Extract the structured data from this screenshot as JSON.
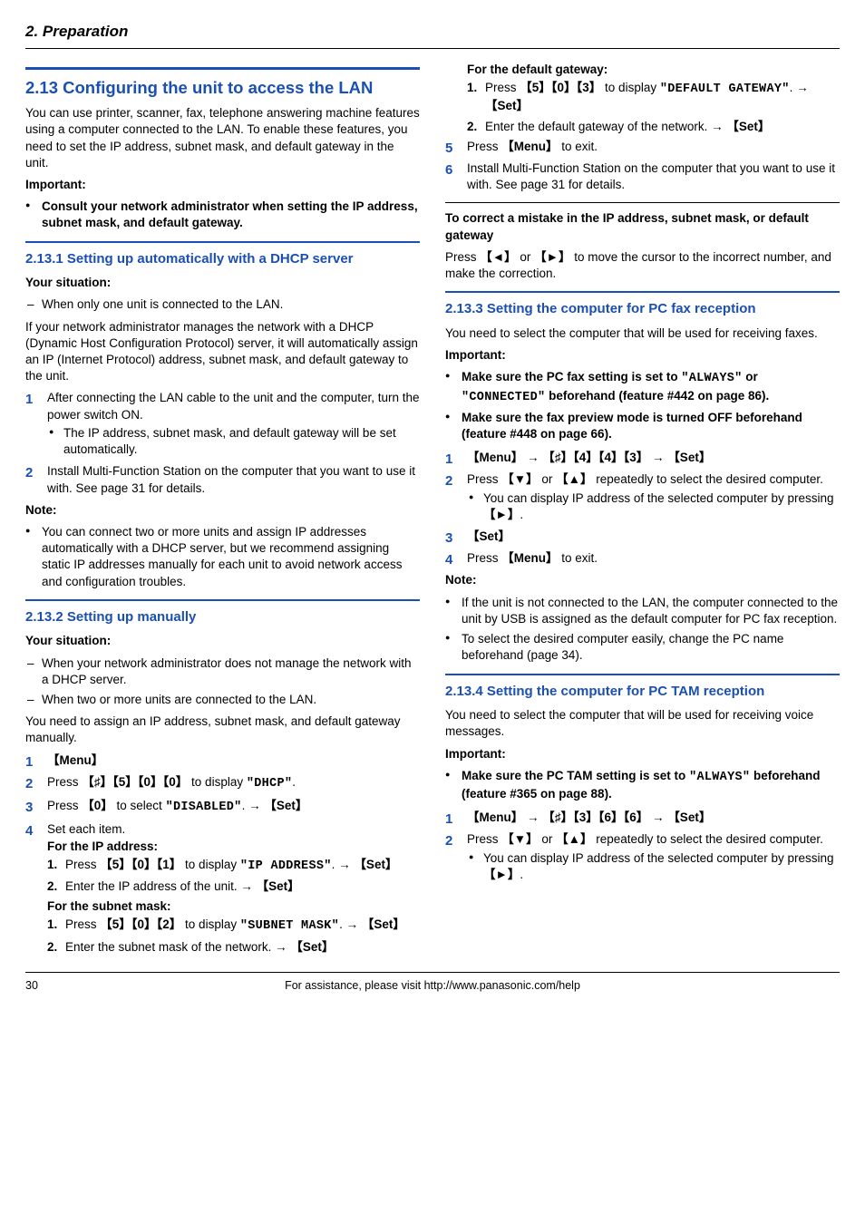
{
  "header": {
    "chapter": "2. Preparation"
  },
  "section213": {
    "title": "2.13 Configuring the unit to access the LAN",
    "intro": "You can use printer, scanner, fax, telephone answering machine features using a computer connected to the LAN. To enable these features, you need to set the IP address, subnet mask, and default gateway in the unit.",
    "important_label": "Important:",
    "important_item": "Consult your network administrator when setting the IP address, subnet mask, and default gateway."
  },
  "sub2131": {
    "title": "2.13.1 Setting up automatically with a DHCP server",
    "situation_label": "Your situation:",
    "situation_item": "When only one unit is connected to the LAN.",
    "para1": "If your network administrator manages the network with a DHCP (Dynamic Host Configuration Protocol) server, it will automatically assign an IP (Internet Protocol) address, subnet mask, and default gateway to the unit.",
    "step1": "After connecting the LAN cable to the unit and the computer, turn the power switch ON.",
    "step1_sub": "The IP address, subnet mask, and default gateway will be set automatically.",
    "step2": "Install Multi-Function Station on the computer that you want to use it with. See page 31 for details.",
    "note_label": "Note:",
    "note_item": "You can connect two or more units and assign IP addresses automatically with a DHCP server, but we recommend assigning static IP addresses manually for each unit to avoid network access and configuration troubles."
  },
  "sub2132": {
    "title": "2.13.2 Setting up manually",
    "situation_label": "Your situation:",
    "sit1": "When your network administrator does not manage the network with a DHCP server.",
    "sit2": "When two or more units are connected to the LAN.",
    "para1": "You need to assign an IP address, subnet mask, and default gateway manually.",
    "s1": "【Menu】",
    "s2_a": "Press ",
    "s2_b": "【♯】【5】【0】【0】",
    "s2_c": " to display ",
    "s2_d": "\"DHCP\"",
    "s2_e": ".",
    "s3_a": "Press ",
    "s3_b": "【0】",
    "s3_c": " to select ",
    "s3_d": "\"DISABLED\"",
    "s3_e": ". → ",
    "s3_f": "【Set】",
    "s4": "Set each item.",
    "ip_label": "For the IP address:",
    "ip1_a": "Press ",
    "ip1_b": "【5】【0】【1】",
    "ip1_c": " to display ",
    "ip1_d": "\"IP ADDRESS\"",
    "ip1_e": ". → ",
    "ip1_f": "【Set】",
    "ip2_a": "Enter the IP address of the unit. → ",
    "ip2_b": "【Set】",
    "sn_label": "For the subnet mask:",
    "sn1_a": "Press ",
    "sn1_b": "【5】【0】【2】",
    "sn1_c": " to display ",
    "sn1_d": "\"SUBNET MASK\"",
    "sn1_e": ". → ",
    "sn1_f": "【Set】",
    "sn2_a": "Enter the subnet mask of the network. → ",
    "sn2_b": "【Set】",
    "gw_label": "For the default gateway:",
    "gw1_a": "Press ",
    "gw1_b": "【5】【0】【3】",
    "gw1_c": " to display ",
    "gw1_d": "\"DEFAULT GATEWAY\"",
    "gw1_e": ". → ",
    "gw1_f": "【Set】",
    "gw2_a": "Enter the default gateway of the network. → ",
    "gw2_b": "【Set】",
    "s5_a": "Press ",
    "s5_b": "【Menu】",
    "s5_c": " to exit.",
    "s6": "Install Multi-Function Station on the computer that you want to use it with. See page 31 for details.",
    "corr_label": "To correct a mistake in the IP address, subnet mask, or default gateway",
    "corr_a": "Press ",
    "corr_b": "【◄】",
    "corr_c": " or ",
    "corr_d": "【►】",
    "corr_e": " to move the cursor to the incorrect number, and make the correction."
  },
  "sub2133": {
    "title": "2.13.3 Setting the computer for PC fax reception",
    "para1": "You need to select the computer that will be used for receiving faxes.",
    "imp_label": "Important:",
    "imp1_a": "Make sure the PC fax setting is set to ",
    "imp1_b": "\"ALWAYS\"",
    "imp1_c": " or ",
    "imp1_d": "\"CONNECTED\"",
    "imp1_e": " beforehand (feature #442 on page 86).",
    "imp2": "Make sure the fax preview mode is turned OFF beforehand (feature #448 on page 66).",
    "s1_a": "【Menu】",
    "s1_b": " → ",
    "s1_c": "【♯】【4】【4】【3】",
    "s1_d": " → ",
    "s1_e": "【Set】",
    "s2_a": "Press ",
    "s2_b": "【▼】",
    "s2_c": " or ",
    "s2_d": "【▲】",
    "s2_e": " repeatedly to select the desired computer.",
    "s2_sub_a": "You can display IP address of the selected computer by pressing ",
    "s2_sub_b": "【►】",
    "s2_sub_c": ".",
    "s3": "【Set】",
    "s4_a": "Press ",
    "s4_b": "【Menu】",
    "s4_c": " to exit.",
    "note_label": "Note:",
    "n1": "If the unit is not connected to the LAN, the computer connected to the unit by USB is assigned as the default computer for PC fax reception.",
    "n2": "To select the desired computer easily, change the PC name beforehand (page 34)."
  },
  "sub2134": {
    "title": "2.13.4 Setting the computer for PC TAM reception",
    "para1": "You need to select the computer that will be used for receiving voice messages.",
    "imp_label": "Important:",
    "imp1_a": "Make sure the PC TAM setting is set to ",
    "imp1_b": "\"ALWAYS\"",
    "imp1_c": " beforehand (feature #365 on page 88).",
    "s1_a": "【Menu】",
    "s1_b": " → ",
    "s1_c": "【♯】【3】【6】【6】",
    "s1_d": " → ",
    "s1_e": "【Set】",
    "s2_a": "Press ",
    "s2_b": "【▼】",
    "s2_c": " or ",
    "s2_d": "【▲】",
    "s2_e": " repeatedly to select the desired computer.",
    "s2_sub_a": "You can display IP address of the selected computer by pressing ",
    "s2_sub_b": "【►】",
    "s2_sub_c": "."
  },
  "footer": {
    "page": "30",
    "text": "For assistance, please visit http://www.panasonic.com/help"
  }
}
